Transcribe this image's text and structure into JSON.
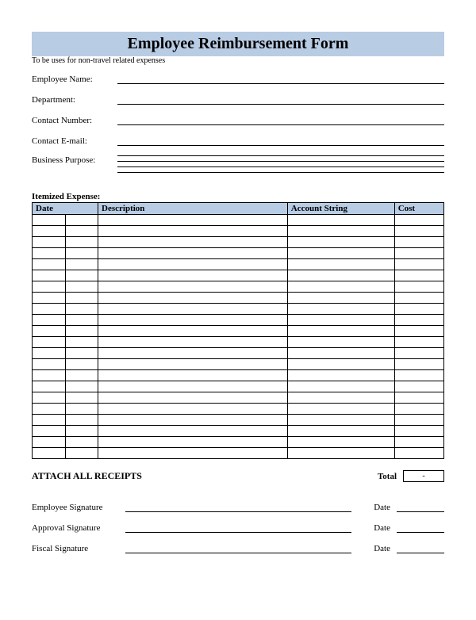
{
  "title": "Employee Reimbursement Form",
  "subtitle": "To be uses for non-travel related expenses",
  "title_bg": "#b8cce4",
  "header_bg": "#b8cce4",
  "fields": {
    "employee_name": "Employee Name:",
    "department": "Department:",
    "contact_number": "Contact Number:",
    "contact_email": "Contact E-mail:",
    "business_purpose": "Business Purpose:"
  },
  "itemized_label": "Itemized Expense:",
  "table": {
    "columns": [
      "Date",
      "Description",
      "Account String",
      "Cost"
    ],
    "row_count": 22
  },
  "attach_label": "ATTACH ALL RECEIPTS",
  "total": {
    "label": "Total",
    "value": "-"
  },
  "signatures": [
    {
      "label": "Employee Signature",
      "date_label": "Date"
    },
    {
      "label": "Approval Signature",
      "date_label": "Date"
    },
    {
      "label": "Fiscal Signature",
      "date_label": "Date"
    }
  ]
}
